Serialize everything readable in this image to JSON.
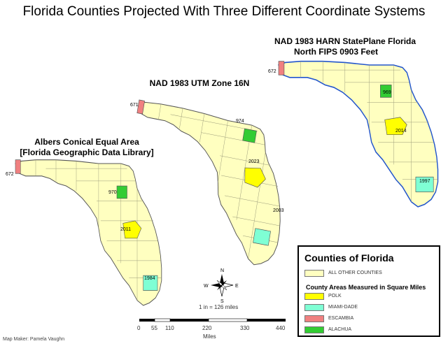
{
  "title": "Florida Counties Projected With Three Different Coordinate Systems",
  "maps": {
    "albers": {
      "label_line1": "Albers Conical Equal Area",
      "label_line2": "[Florida Geographic Data Library]",
      "escambia": "672",
      "alachua": "970",
      "polk": "2011",
      "miami_dade": "1984"
    },
    "utm": {
      "label_line1": "NAD 1983 UTM Zone 16N",
      "escambia": "671",
      "alachua": "974",
      "polk": "2023",
      "miami_dade": "2003"
    },
    "stateplane": {
      "label_line1": "NAD 1983 HARN StatePlane Florida",
      "label_line2": "North FIPS 0903 Feet",
      "escambia": "672",
      "alachua": "969",
      "polk": "2014",
      "miami_dade": "1997"
    }
  },
  "legend": {
    "title": "Counties of Florida",
    "other": "ALL OTHER COUNTIES",
    "subtitle": "County Areas Measured in Square Miles",
    "items": [
      {
        "label": "POLK",
        "color": "#ffff00"
      },
      {
        "label": "MIAMI-DADE",
        "color": "#7fffd4"
      },
      {
        "label": "ESCAMBIA",
        "color": "#f08080"
      },
      {
        "label": "ALACHUA",
        "color": "#33cc33"
      }
    ],
    "other_color": "#ffffc0"
  },
  "compass": {
    "n": "N",
    "s": "S",
    "e": "E",
    "w": "W"
  },
  "scale": {
    "ratio": "1 in = 126 miles",
    "ticks": [
      "0",
      "55",
      "110",
      "220",
      "330",
      "440"
    ],
    "units": "Miles"
  },
  "map_maker": "Map Maker: Pamela Vaughn"
}
